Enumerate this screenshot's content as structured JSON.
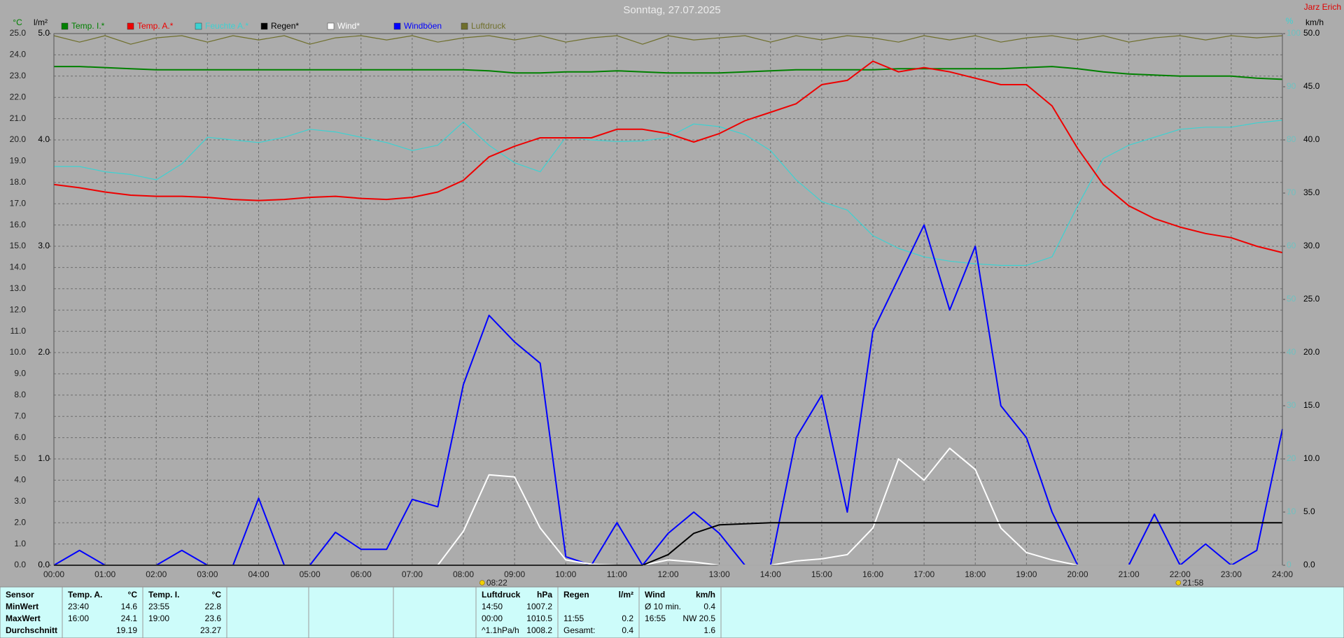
{
  "chart_data": {
    "type": "line",
    "title": "Sonntag, 27.07.2025",
    "author": "Jarz Erich",
    "y_label": "°C",
    "y2_label": "l/m²",
    "y3_label": "km/h",
    "y4_label": "%",
    "grid": true,
    "xlim": [
      0,
      24
    ],
    "xticks": [
      {
        "value": 0,
        "label": "00:00"
      },
      {
        "value": 1,
        "label": "01:00"
      },
      {
        "value": 2,
        "label": "02:00"
      },
      {
        "value": 3,
        "label": "03:00"
      },
      {
        "value": 4,
        "label": "04:00"
      },
      {
        "value": 5,
        "label": "05:00"
      },
      {
        "value": 6,
        "label": "06:00"
      },
      {
        "value": 7,
        "label": "07:00"
      },
      {
        "value": 8,
        "label": "08:00"
      },
      {
        "value": 9,
        "label": "09:00"
      },
      {
        "value": 10,
        "label": "10:00"
      },
      {
        "value": 11,
        "label": "11:00"
      },
      {
        "value": 12,
        "label": "12:00"
      },
      {
        "value": 13,
        "label": "13:00"
      },
      {
        "value": 14,
        "label": "14:00"
      },
      {
        "value": 15,
        "label": "15:00"
      },
      {
        "value": 16,
        "label": "16:00"
      },
      {
        "value": 17,
        "label": "17:00"
      },
      {
        "value": 18,
        "label": "18:00"
      },
      {
        "value": 19,
        "label": "19:00"
      },
      {
        "value": 20,
        "label": "20:00"
      },
      {
        "value": 21,
        "label": "21:00"
      },
      {
        "value": 22,
        "label": "22:00"
      },
      {
        "value": 23,
        "label": "23:00"
      },
      {
        "value": 24,
        "label": "24:00"
      }
    ],
    "ylim": [
      0,
      25
    ],
    "yticks": [
      {
        "value": 0,
        "label": "0.0"
      },
      {
        "value": 1,
        "label": "1.0"
      },
      {
        "value": 2,
        "label": "2.0"
      },
      {
        "value": 3,
        "label": "3.0"
      },
      {
        "value": 4,
        "label": "4.0"
      },
      {
        "value": 5,
        "label": "5.0"
      },
      {
        "value": 6,
        "label": "6.0"
      },
      {
        "value": 7,
        "label": "7.0"
      },
      {
        "value": 8,
        "label": "8.0"
      },
      {
        "value": 9,
        "label": "9.0"
      },
      {
        "value": 10,
        "label": "10.0"
      },
      {
        "value": 11,
        "label": "11.0"
      },
      {
        "value": 12,
        "label": "12.0"
      },
      {
        "value": 13,
        "label": "13.0"
      },
      {
        "value": 14,
        "label": "14.0"
      },
      {
        "value": 15,
        "label": "15.0"
      },
      {
        "value": 16,
        "label": "16.0"
      },
      {
        "value": 17,
        "label": "17.0"
      },
      {
        "value": 18,
        "label": "18.0"
      },
      {
        "value": 19,
        "label": "19.0"
      },
      {
        "value": 20,
        "label": "20.0"
      },
      {
        "value": 21,
        "label": "21.0"
      },
      {
        "value": 22,
        "label": "22.0"
      },
      {
        "value": 23,
        "label": "23.0"
      },
      {
        "value": 24,
        "label": "24.0"
      },
      {
        "value": 25,
        "label": "25.0"
      }
    ],
    "y2lim": [
      0,
      5
    ],
    "y2ticks": [
      {
        "value": 0,
        "label": "0.0"
      },
      {
        "value": 1,
        "label": "1.0"
      },
      {
        "value": 2,
        "label": "2.0"
      },
      {
        "value": 3,
        "label": "3.0"
      },
      {
        "value": 4,
        "label": "4.0"
      },
      {
        "value": 5,
        "label": "5.0"
      }
    ],
    "y3lim": [
      0,
      50
    ],
    "y3ticks": [
      {
        "value": 0,
        "label": "0.0"
      },
      {
        "value": 5,
        "label": "5.0"
      },
      {
        "value": 10,
        "label": "10.0"
      },
      {
        "value": 15,
        "label": "15.0"
      },
      {
        "value": 20,
        "label": "20.0"
      },
      {
        "value": 25,
        "label": "25.0"
      },
      {
        "value": 30,
        "label": "30.0"
      },
      {
        "value": 35,
        "label": "35.0"
      },
      {
        "value": 40,
        "label": "40.0"
      },
      {
        "value": 45,
        "label": "45.0"
      },
      {
        "value": 50,
        "label": "50.0"
      }
    ],
    "y4lim": [
      0,
      100
    ],
    "y4ticks": [
      0,
      10,
      20,
      30,
      40,
      50,
      60,
      70,
      80,
      90,
      100
    ],
    "x": [
      0,
      0.5,
      1,
      1.5,
      2,
      2.5,
      3,
      3.5,
      4,
      4.5,
      5,
      5.5,
      6,
      6.5,
      7,
      7.5,
      8,
      8.5,
      9,
      9.5,
      10,
      10.5,
      11,
      11.5,
      12,
      12.5,
      13,
      13.5,
      14,
      14.5,
      15,
      15.5,
      16,
      16.5,
      17,
      17.5,
      18,
      18.5,
      19,
      19.5,
      20,
      20.5,
      21,
      21.5,
      22,
      22.5,
      23,
      23.5,
      24
    ],
    "series": [
      {
        "name": "Temp. I.*",
        "color": "#008000",
        "axis": "y",
        "values": [
          23.45,
          23.45,
          23.4,
          23.35,
          23.3,
          23.3,
          23.3,
          23.3,
          23.3,
          23.3,
          23.3,
          23.3,
          23.3,
          23.3,
          23.3,
          23.3,
          23.3,
          23.25,
          23.15,
          23.15,
          23.2,
          23.2,
          23.25,
          23.2,
          23.15,
          23.15,
          23.15,
          23.2,
          23.25,
          23.3,
          23.3,
          23.3,
          23.3,
          23.35,
          23.35,
          23.35,
          23.35,
          23.35,
          23.4,
          23.45,
          23.35,
          23.2,
          23.1,
          23.05,
          23.0,
          23.0,
          23.0,
          22.9,
          22.85
        ]
      },
      {
        "name": "Temp. A.*",
        "color": "#ee0000",
        "axis": "y",
        "values": [
          17.9,
          17.75,
          17.55,
          17.4,
          17.35,
          17.35,
          17.3,
          17.2,
          17.15,
          17.2,
          17.3,
          17.35,
          17.25,
          17.2,
          17.3,
          17.55,
          18.1,
          19.2,
          19.7,
          20.1,
          20.1,
          20.1,
          20.5,
          20.5,
          20.3,
          19.9,
          20.3,
          20.9,
          21.3,
          21.7,
          22.6,
          22.8,
          23.7,
          23.2,
          23.4,
          23.2,
          22.9,
          22.6,
          22.6,
          21.6,
          19.6,
          17.9,
          16.9,
          16.3,
          15.9,
          15.6,
          15.4,
          15.0,
          14.7
        ]
      },
      {
        "name": "Feuchte A.*",
        "color": "#3cd2d2",
        "axis": "y4",
        "values": [
          75,
          75,
          74,
          73.5,
          72.5,
          75.5,
          80.5,
          80,
          79.5,
          80.5,
          82,
          81.5,
          80.5,
          79.5,
          78,
          79,
          83.4,
          79,
          75.7,
          74,
          80.5,
          80,
          79.7,
          79.8,
          80.5,
          83,
          82.5,
          81,
          78,
          72.5,
          68.4,
          66.8,
          62,
          59.6,
          58,
          57.2,
          56.7,
          56.4,
          56.4,
          58,
          67.6,
          76.5,
          79,
          80.5,
          82,
          82.4,
          82.4,
          83.2,
          83.7
        ]
      },
      {
        "name": "Regen*",
        "color": "#000000",
        "axis": "y2",
        "values": [
          0,
          0,
          0,
          0,
          0,
          0,
          0,
          0,
          0,
          0,
          0,
          0,
          0,
          0,
          0,
          0,
          0,
          0,
          0,
          0,
          0,
          0,
          0,
          0,
          0.1,
          0.3,
          0.38,
          0.39,
          0.4,
          0.4,
          0.4,
          0.4,
          0.4,
          0.4,
          0.4,
          0.4,
          0.4,
          0.4,
          0.4,
          0.4,
          0.4,
          0.4,
          0.4,
          0.4,
          0.4,
          0.4,
          0.4,
          0.4,
          0.4
        ]
      },
      {
        "name": "Wind*",
        "color": "#ffffff",
        "axis": "y3",
        "values": [
          0,
          0,
          0,
          0,
          0,
          0,
          0,
          0,
          0,
          0,
          0,
          0,
          0,
          0,
          0,
          0,
          3.2,
          8.5,
          8.3,
          3.5,
          0.5,
          0.1,
          0,
          0,
          0.5,
          0.3,
          0,
          0,
          0,
          0.4,
          0.6,
          1,
          3.5,
          10,
          8,
          11,
          9,
          3.5,
          1.2,
          0.5,
          0,
          0,
          0,
          0,
          0,
          0,
          0,
          0,
          0
        ]
      },
      {
        "name": "Windböen",
        "color": "#0000ff",
        "axis": "y3",
        "values": [
          0,
          1.4,
          0,
          0,
          0,
          1.4,
          0,
          0,
          6.3,
          0,
          0,
          3.1,
          1.5,
          1.5,
          6.2,
          5.5,
          17,
          23.5,
          21,
          19,
          0.8,
          0,
          4,
          0,
          3,
          5,
          3,
          0,
          0,
          12,
          16,
          5,
          22,
          27,
          32,
          24,
          30,
          15,
          12,
          5,
          0,
          0,
          0,
          4.8,
          0,
          2,
          0,
          1.4,
          12.8
        ]
      },
      {
        "name": "Luftdruck",
        "color": "#6f6f2c",
        "axis": "y",
        "values": [
          24.9,
          24.6,
          24.9,
          24.5,
          24.8,
          24.9,
          24.6,
          24.9,
          24.7,
          24.9,
          24.5,
          24.8,
          24.9,
          24.7,
          24.9,
          24.6,
          24.8,
          24.9,
          24.7,
          24.9,
          24.6,
          24.8,
          24.9,
          24.5,
          24.9,
          24.7,
          24.8,
          24.9,
          24.6,
          24.9,
          24.7,
          24.9,
          24.8,
          24.6,
          24.9,
          24.7,
          24.9,
          24.6,
          24.8,
          24.9,
          24.7,
          24.9,
          24.6,
          24.8,
          24.9,
          24.7,
          24.9,
          24.8,
          24.9
        ]
      }
    ],
    "annotations": [
      {
        "text": "08:22",
        "x": 8.3667
      },
      {
        "text": "21:58",
        "x": 21.9667
      }
    ]
  },
  "table": {
    "columns": [
      {
        "title": "Sensor"
      },
      {
        "title": "Temp. A.",
        "unit": "°C"
      },
      {
        "title": "Temp. I.",
        "unit": "°C"
      },
      {
        "title": "Luftdruck",
        "unit": "hPa"
      },
      {
        "title": "Regen",
        "unit": "l/m²"
      },
      {
        "title": "Wind",
        "unit": "km/h"
      }
    ],
    "rows": [
      {
        "label": "MinWert",
        "cells": [
          {
            "left": "23:40",
            "right": "14.6"
          },
          {
            "left": "23:55",
            "right": "22.8"
          },
          {
            "left": "14:50",
            "right": "1007.2"
          },
          null,
          {
            "left": "Ø 10 min.",
            "right": "0.4"
          }
        ]
      },
      {
        "label": "MaxWert",
        "cells": [
          {
            "left": "16:00",
            "right": "24.1"
          },
          {
            "left": "19:00",
            "right": "23.6"
          },
          {
            "left": "00:00",
            "right": "1010.5"
          },
          {
            "left": "11:55",
            "right": "0.2"
          },
          {
            "left": "16:55",
            "right": "NW 20.5"
          }
        ]
      },
      {
        "label": "Durchschnitt",
        "cells": [
          {
            "right": "19.19"
          },
          {
            "right": "23.27"
          },
          {
            "left": "^1.1hPa/h",
            "right": "1008.2"
          },
          {
            "left": "Gesamt:",
            "right": "0.4"
          },
          {
            "right": "1.6"
          }
        ]
      }
    ]
  }
}
